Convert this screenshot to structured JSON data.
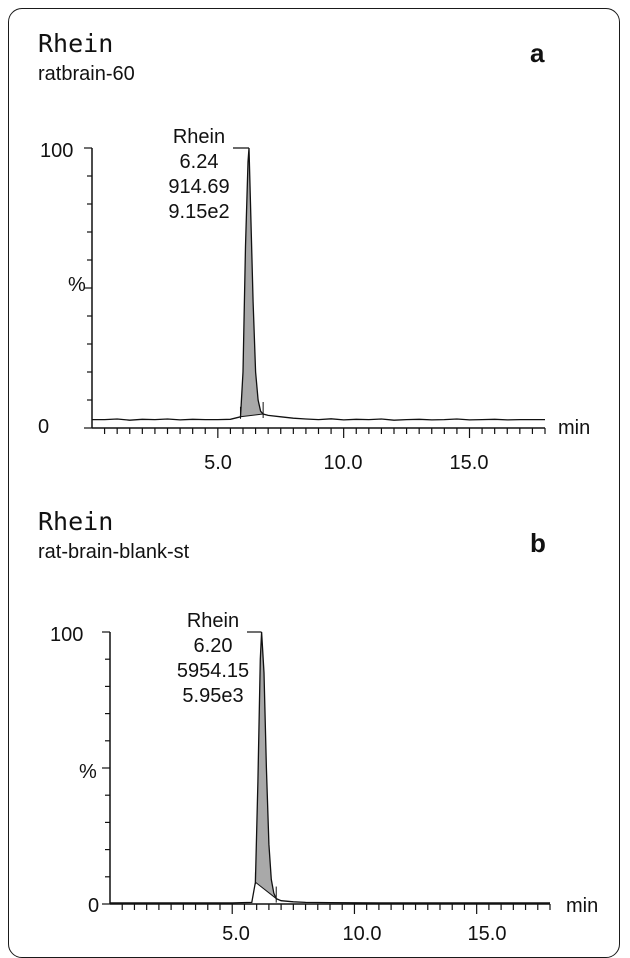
{
  "chart_data": [
    {
      "type": "line",
      "panel_label": "a",
      "compound": "Rhein",
      "sample": "ratbrain-60",
      "xlabel": "min",
      "ylabel": "%",
      "xlim": [
        0,
        18
      ],
      "ylim": [
        0,
        100
      ],
      "xticks": [
        "5.0",
        "10.0",
        "15.0"
      ],
      "yticks": [
        "0",
        "%",
        "100"
      ],
      "peak": {
        "name": "Rhein",
        "rt": "6.24",
        "area": "914.69",
        "height": "9.15e2"
      },
      "baseline_level": 3,
      "series": [
        {
          "x": [
            0.0,
            0.5,
            1.0,
            1.5,
            2.0,
            2.5,
            3.0,
            3.5,
            4.0,
            4.5,
            5.0,
            5.5,
            5.9,
            6.0,
            6.1,
            6.2,
            6.24,
            6.3,
            6.4,
            6.5,
            6.6,
            6.7,
            6.8,
            7.0,
            7.5,
            8.0,
            8.5,
            9.0,
            9.5,
            10.0,
            10.5,
            11.0,
            11.5,
            12.0,
            12.5,
            13.0,
            13.5,
            14.0,
            14.5,
            15.0,
            15.5,
            16.0,
            16.5,
            17.0,
            17.5,
            18.0
          ],
          "y": [
            3,
            3,
            3.2,
            2.8,
            3.1,
            3,
            3.2,
            2.9,
            3.1,
            3,
            3,
            3.1,
            4,
            20,
            65,
            95,
            100,
            80,
            45,
            20,
            10,
            6,
            5,
            4.5,
            4,
            3.5,
            3.2,
            3,
            3.3,
            2.9,
            3.1,
            3,
            3.2,
            2.8,
            3,
            3.1,
            2.9,
            3,
            3.2,
            2.9,
            3,
            3.1,
            2.9,
            3,
            3,
            3
          ]
        }
      ]
    },
    {
      "type": "line",
      "panel_label": "b",
      "compound": "Rhein",
      "sample": "rat-brain-blank-st",
      "xlabel": "min",
      "ylabel": "%",
      "xlim": [
        0,
        18
      ],
      "ylim": [
        0,
        100
      ],
      "xticks": [
        "5.0",
        "10.0",
        "15.0"
      ],
      "yticks": [
        "0",
        "%",
        "100"
      ],
      "peak": {
        "name": "Rhein",
        "rt": "6.20",
        "area": "5954.15",
        "height": "5.95e3"
      },
      "baseline_level": 0.4,
      "series": [
        {
          "x": [
            0.0,
            1.0,
            2.0,
            3.0,
            4.0,
            5.0,
            5.8,
            5.95,
            6.05,
            6.15,
            6.2,
            6.3,
            6.4,
            6.5,
            6.6,
            6.7,
            6.8,
            7.0,
            7.5,
            8.0,
            9.0,
            10.0,
            11.0,
            12.0,
            13.0,
            14.0,
            15.0,
            16.0,
            17.0,
            18.0
          ],
          "y": [
            0.4,
            0.4,
            0.4,
            0.4,
            0.4,
            0.4,
            0.6,
            8,
            45,
            90,
            100,
            85,
            50,
            22,
            9,
            4,
            2,
            1.2,
            0.8,
            0.6,
            0.5,
            0.45,
            0.4,
            0.4,
            0.4,
            0.4,
            0.4,
            0.4,
            0.4,
            0.4
          ]
        }
      ]
    }
  ]
}
